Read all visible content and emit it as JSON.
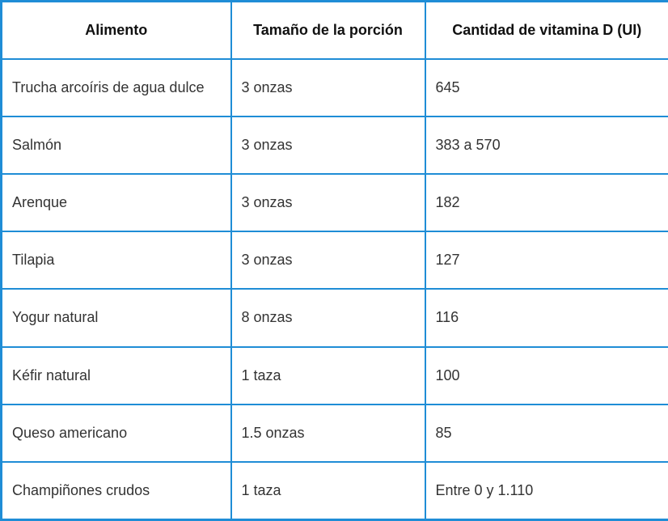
{
  "table": {
    "header": [
      "Alimento",
      "Tamaño de la porción",
      "Cantidad de vitamina D (UI)"
    ],
    "rows": [
      [
        "Trucha arcoíris de agua dulce",
        "3 onzas",
        "645"
      ],
      [
        "Salmón",
        "3 onzas",
        "383 a 570"
      ],
      [
        "Arenque",
        "3 onzas",
        "182"
      ],
      [
        "Tilapia",
        "3 onzas",
        "127"
      ],
      [
        "Yogur natural",
        "8 onzas",
        "116"
      ],
      [
        "Kéfir natural",
        "1 taza",
        "100"
      ],
      [
        "Queso americano",
        "1.5 onzas",
        "85"
      ],
      [
        "Champiñones crudos",
        "1 taza",
        "Entre 0 y 1.110"
      ]
    ]
  }
}
